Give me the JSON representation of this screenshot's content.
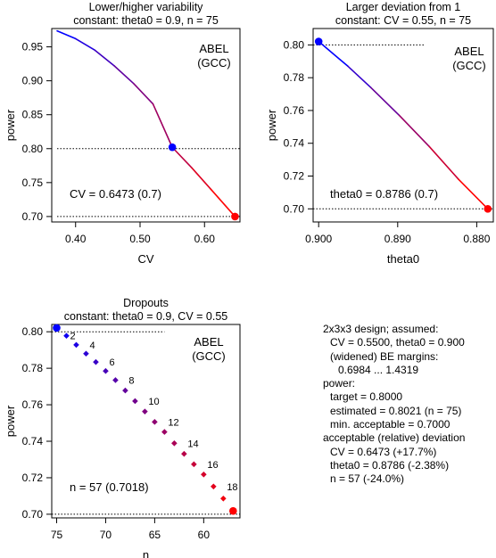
{
  "chart_data": [
    {
      "type": "line",
      "title": "Lower/higher variability",
      "subtitle": "constant: theta0 = 0.9, n = 75",
      "xlabel": "CV",
      "ylabel": "power",
      "xlim": [
        0.363,
        0.655
      ],
      "ylim": [
        0.692,
        0.977
      ],
      "xticks": [
        "0.40",
        "0.50",
        "0.60"
      ],
      "xtick_values": [
        0.4,
        0.5,
        0.6
      ],
      "yticks": [
        "0.70",
        "0.75",
        "0.80",
        "0.85",
        "0.90",
        "0.95"
      ],
      "ytick_values": [
        0.7,
        0.75,
        0.8,
        0.85,
        0.9,
        0.95
      ],
      "series": [
        {
          "x": [
            0.3713,
            0.4,
            0.43,
            0.46,
            0.49,
            0.52,
            0.55,
            0.58,
            0.61,
            0.6473
          ],
          "y": [
            0.9735,
            0.962,
            0.945,
            0.922,
            0.896,
            0.866,
            0.802,
            0.772,
            0.74,
            0.7
          ]
        }
      ],
      "reference_lines": [
        {
          "orientation": "horizontal",
          "y": 0.8,
          "x_from": 0.3713,
          "x_to": 0.655
        },
        {
          "orientation": "horizontal",
          "y": 0.7,
          "x_from": 0.3713,
          "x_to": 0.655
        }
      ],
      "marked_points": [
        {
          "x": 0.55,
          "y": 0.8021,
          "color": "#0000ff"
        },
        {
          "x": 0.6473,
          "y": 0.7,
          "color": "#ff0000"
        }
      ],
      "annotations": [
        {
          "text": "ABEL\n(GCC)",
          "position": "top-right"
        },
        {
          "text": "CV = 0.6473 (0.7)",
          "position": "bottom-left"
        }
      ],
      "grid": false,
      "gradient": [
        "#0000ff",
        "#ff0000"
      ]
    },
    {
      "type": "line",
      "title": "Larger deviation from 1",
      "subtitle": "constant: CV = 0.55, n = 75",
      "xlabel": "theta0",
      "ylabel": "power",
      "xlim": [
        0.9007,
        0.8779
      ],
      "ylim": [
        0.692,
        0.81
      ],
      "xticks": [
        "0.900",
        "0.890",
        "0.880"
      ],
      "xtick_values": [
        0.9,
        0.89,
        0.88
      ],
      "yticks": [
        "0.70",
        "0.72",
        "0.74",
        "0.76",
        "0.78",
        "0.80"
      ],
      "ytick_values": [
        0.7,
        0.72,
        0.74,
        0.76,
        0.78,
        0.8
      ],
      "series": [
        {
          "x": [
            0.9,
            0.8963,
            0.8934,
            0.8898,
            0.886,
            0.8823,
            0.8786
          ],
          "y": [
            0.8021,
            0.787,
            0.774,
            0.757,
            0.738,
            0.718,
            0.7
          ]
        }
      ],
      "reference_lines": [
        {
          "orientation": "horizontal",
          "y": 0.8,
          "x_from": 0.9007,
          "x_to": 0.8866
        },
        {
          "orientation": "horizontal",
          "y": 0.7,
          "x_from": 0.9007,
          "x_to": 0.8779
        }
      ],
      "marked_points": [
        {
          "x": 0.9,
          "y": 0.8021,
          "color": "#0000ff"
        },
        {
          "x": 0.8786,
          "y": 0.7,
          "color": "#ff0000"
        }
      ],
      "annotations": [
        {
          "text": "ABEL\n(GCC)",
          "position": "top-right"
        },
        {
          "text": "theta0 = 0.8786 (0.7)",
          "position": "bottom-left"
        }
      ],
      "grid": false,
      "gradient": [
        "#0000ff",
        "#ff0000"
      ]
    },
    {
      "type": "scatter",
      "title": "Dropouts",
      "subtitle": "constant: theta0 = 0.9, CV = 0.55",
      "xlabel": "n",
      "ylabel": "power",
      "xlim": [
        75.5,
        56.3
      ],
      "ylim": [
        0.698,
        0.804
      ],
      "xticks": [
        "75",
        "70",
        "65",
        "60"
      ],
      "xtick_values": [
        75,
        70,
        65,
        60
      ],
      "yticks": [
        "0.70",
        "0.72",
        "0.74",
        "0.76",
        "0.78",
        "0.80"
      ],
      "ytick_values": [
        0.7,
        0.72,
        0.74,
        0.76,
        0.78,
        0.8
      ],
      "series": [
        {
          "x": [
            75,
            74,
            73,
            72,
            71,
            70,
            69,
            68,
            67,
            66,
            65,
            64,
            63,
            62,
            61,
            60,
            59,
            58,
            57
          ],
          "y": [
            0.8021,
            0.7978,
            0.7928,
            0.788,
            0.7834,
            0.7785,
            0.7735,
            0.7678,
            0.762,
            0.7563,
            0.7506,
            0.7451,
            0.7389,
            0.7331,
            0.7274,
            0.7218,
            0.7152,
            0.7086,
            0.7018
          ]
        }
      ],
      "point_labels": [
        {
          "x": 74,
          "y": 0.7978,
          "text": "2"
        },
        {
          "x": 72,
          "y": 0.7928,
          "text": "4"
        },
        {
          "x": 70,
          "y": 0.7834,
          "text": "6"
        },
        {
          "x": 68,
          "y": 0.7735,
          "text": "8"
        },
        {
          "x": 66,
          "y": 0.762,
          "text": "10"
        },
        {
          "x": 64,
          "y": 0.7506,
          "text": "12"
        },
        {
          "x": 62,
          "y": 0.7389,
          "text": "14"
        },
        {
          "x": 60,
          "y": 0.7274,
          "text": "16"
        },
        {
          "x": 58,
          "y": 0.7152,
          "text": "18"
        }
      ],
      "reference_lines": [
        {
          "orientation": "horizontal",
          "y": 0.8,
          "x_from": 75.5,
          "x_to": 64.0
        },
        {
          "orientation": "horizontal",
          "y": 0.7,
          "x_from": 75.5,
          "x_to": 56.3
        }
      ],
      "marked_points": [
        {
          "x": 75,
          "y": 0.8021,
          "color": "#0000ff"
        },
        {
          "x": 57,
          "y": 0.7018,
          "color": "#ff0000"
        }
      ],
      "annotations": [
        {
          "text": "ABEL\n(GCC)",
          "position": "top-right"
        },
        {
          "text": "n = 57 (0.7018)",
          "position": "bottom-left"
        }
      ],
      "grid": false,
      "gradient": [
        "#0000ff",
        "#ff0000"
      ]
    }
  ],
  "summary": {
    "line1": "2x3x3 design; assumed:",
    "line2": "CV = 0.5500, theta0 = 0.900",
    "line3": "(widened) BE margins:",
    "line4": "0.6984 ... 1.4319",
    "line5": "power:",
    "line6": "target = 0.8000",
    "line7": "estimated = 0.8021 (n = 75)",
    "line8": "min. acceptable = 0.7000",
    "line9": "acceptable (relative) deviation",
    "line10": "CV = 0.6473 (+17.7%)",
    "line11": "theta0 = 0.8786 (-2.38%)",
    "line12": "n = 57 (-24.0%)"
  }
}
